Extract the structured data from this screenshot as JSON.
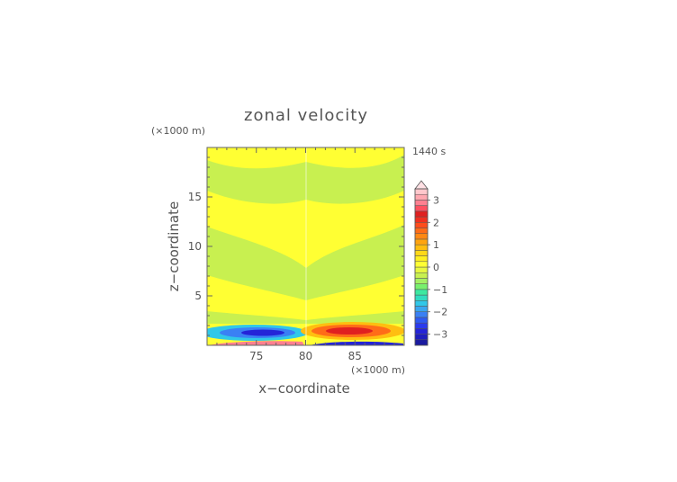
{
  "chart_data": {
    "type": "heatmap",
    "title": "zonal velocity",
    "time_label": "1440 s",
    "xlabel": "x−coordinate",
    "ylabel": "z−coordinate",
    "x_unit": "(×1000 m)",
    "y_unit": "(×1000 m)",
    "xlim": [
      70,
      90
    ],
    "ylim": [
      0,
      20
    ],
    "x_ticks": [
      75,
      80,
      85
    ],
    "y_ticks": [
      5,
      10,
      15
    ],
    "colorbar": {
      "levels": [
        -3.5,
        -3.25,
        -3,
        -2.75,
        -2.5,
        -2.25,
        -2,
        -1.75,
        -1.5,
        -1.25,
        -1,
        -0.75,
        -0.5,
        -0.25,
        0,
        0.25,
        0.5,
        0.75,
        1,
        1.25,
        1.5,
        1.75,
        2,
        2.25,
        2.5,
        2.75,
        3,
        3.25,
        3.5
      ],
      "colors": [
        "#1a1aa0",
        "#1e1ebe",
        "#2424d8",
        "#2a3aee",
        "#2e5af2",
        "#3a80f4",
        "#3aa6f0",
        "#30c8e8",
        "#30dcc0",
        "#3ce8a0",
        "#78f06e",
        "#a4f064",
        "#c8f050",
        "#e8f840",
        "#ffff33",
        "#fff020",
        "#ffd818",
        "#ffbe10",
        "#ffa410",
        "#ff8814",
        "#ff6c18",
        "#ff4c1c",
        "#f03020",
        "#e02020",
        "#ff5060",
        "#ff8090",
        "#ffa8b0",
        "#ffc8cc"
      ],
      "tick_values": [
        -3,
        -2,
        -1,
        0,
        1,
        2,
        3
      ],
      "tick_labels": [
        "−3",
        "−2",
        "−1",
        "0",
        "1",
        "2",
        "3"
      ],
      "extend": "max"
    }
  }
}
